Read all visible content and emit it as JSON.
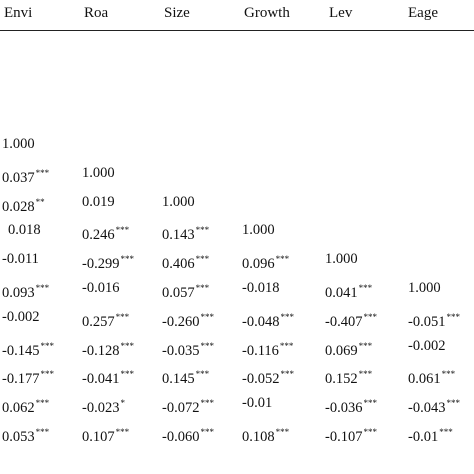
{
  "table": {
    "headers": [
      "Envi",
      "Roa",
      "Size",
      "Growth",
      "Lev",
      "Eage"
    ],
    "rows": [
      [
        [
          "1.000",
          ""
        ]
      ],
      [
        [
          "0.037",
          "***"
        ],
        [
          "1.000",
          ""
        ]
      ],
      [
        [
          "0.028",
          "**"
        ],
        [
          "0.019",
          ""
        ],
        [
          "1.000",
          ""
        ]
      ],
      [
        [
          "0.018",
          ""
        ],
        [
          "0.246",
          "***"
        ],
        [
          "0.143",
          "***"
        ],
        [
          "1.000",
          ""
        ]
      ],
      [
        [
          "-0.011",
          ""
        ],
        [
          "-0.299",
          "***"
        ],
        [
          "0.406",
          "***"
        ],
        [
          "0.096",
          "***"
        ],
        [
          "1.000",
          ""
        ]
      ],
      [
        [
          "0.093",
          "***"
        ],
        [
          "-0.016",
          ""
        ],
        [
          "0.057",
          "***"
        ],
        [
          "-0.018",
          ""
        ],
        [
          "0.041",
          "***"
        ],
        [
          "1.000",
          ""
        ]
      ],
      [
        [
          "-0.002",
          ""
        ],
        [
          "0.257",
          "***"
        ],
        [
          "-0.260",
          "***"
        ],
        [
          "-0.048",
          "***"
        ],
        [
          "-0.407",
          "***"
        ],
        [
          "-0.051",
          "***"
        ]
      ],
      [
        [
          "-0.145",
          "***"
        ],
        [
          "-0.128",
          "***"
        ],
        [
          "-0.035",
          "***"
        ],
        [
          "-0.116",
          "***"
        ],
        [
          "0.069",
          "***"
        ],
        [
          "-0.002",
          ""
        ]
      ],
      [
        [
          "-0.177",
          "***"
        ],
        [
          "-0.041",
          "***"
        ],
        [
          "0.145",
          "***"
        ],
        [
          "-0.052",
          "***"
        ],
        [
          "0.152",
          "***"
        ],
        [
          "0.061",
          "***"
        ]
      ],
      [
        [
          "0.062",
          "***"
        ],
        [
          "-0.023",
          "*"
        ],
        [
          "-0.072",
          "***"
        ],
        [
          "-0.01",
          ""
        ],
        [
          "-0.036",
          "***"
        ],
        [
          "-0.043",
          "***"
        ]
      ],
      [
        [
          "0.053",
          "***"
        ],
        [
          "0.107",
          "***"
        ],
        [
          "-0.060",
          "***"
        ],
        [
          "0.108",
          "***"
        ],
        [
          "-0.107",
          "***"
        ],
        [
          "-0.01",
          "***"
        ]
      ]
    ]
  }
}
